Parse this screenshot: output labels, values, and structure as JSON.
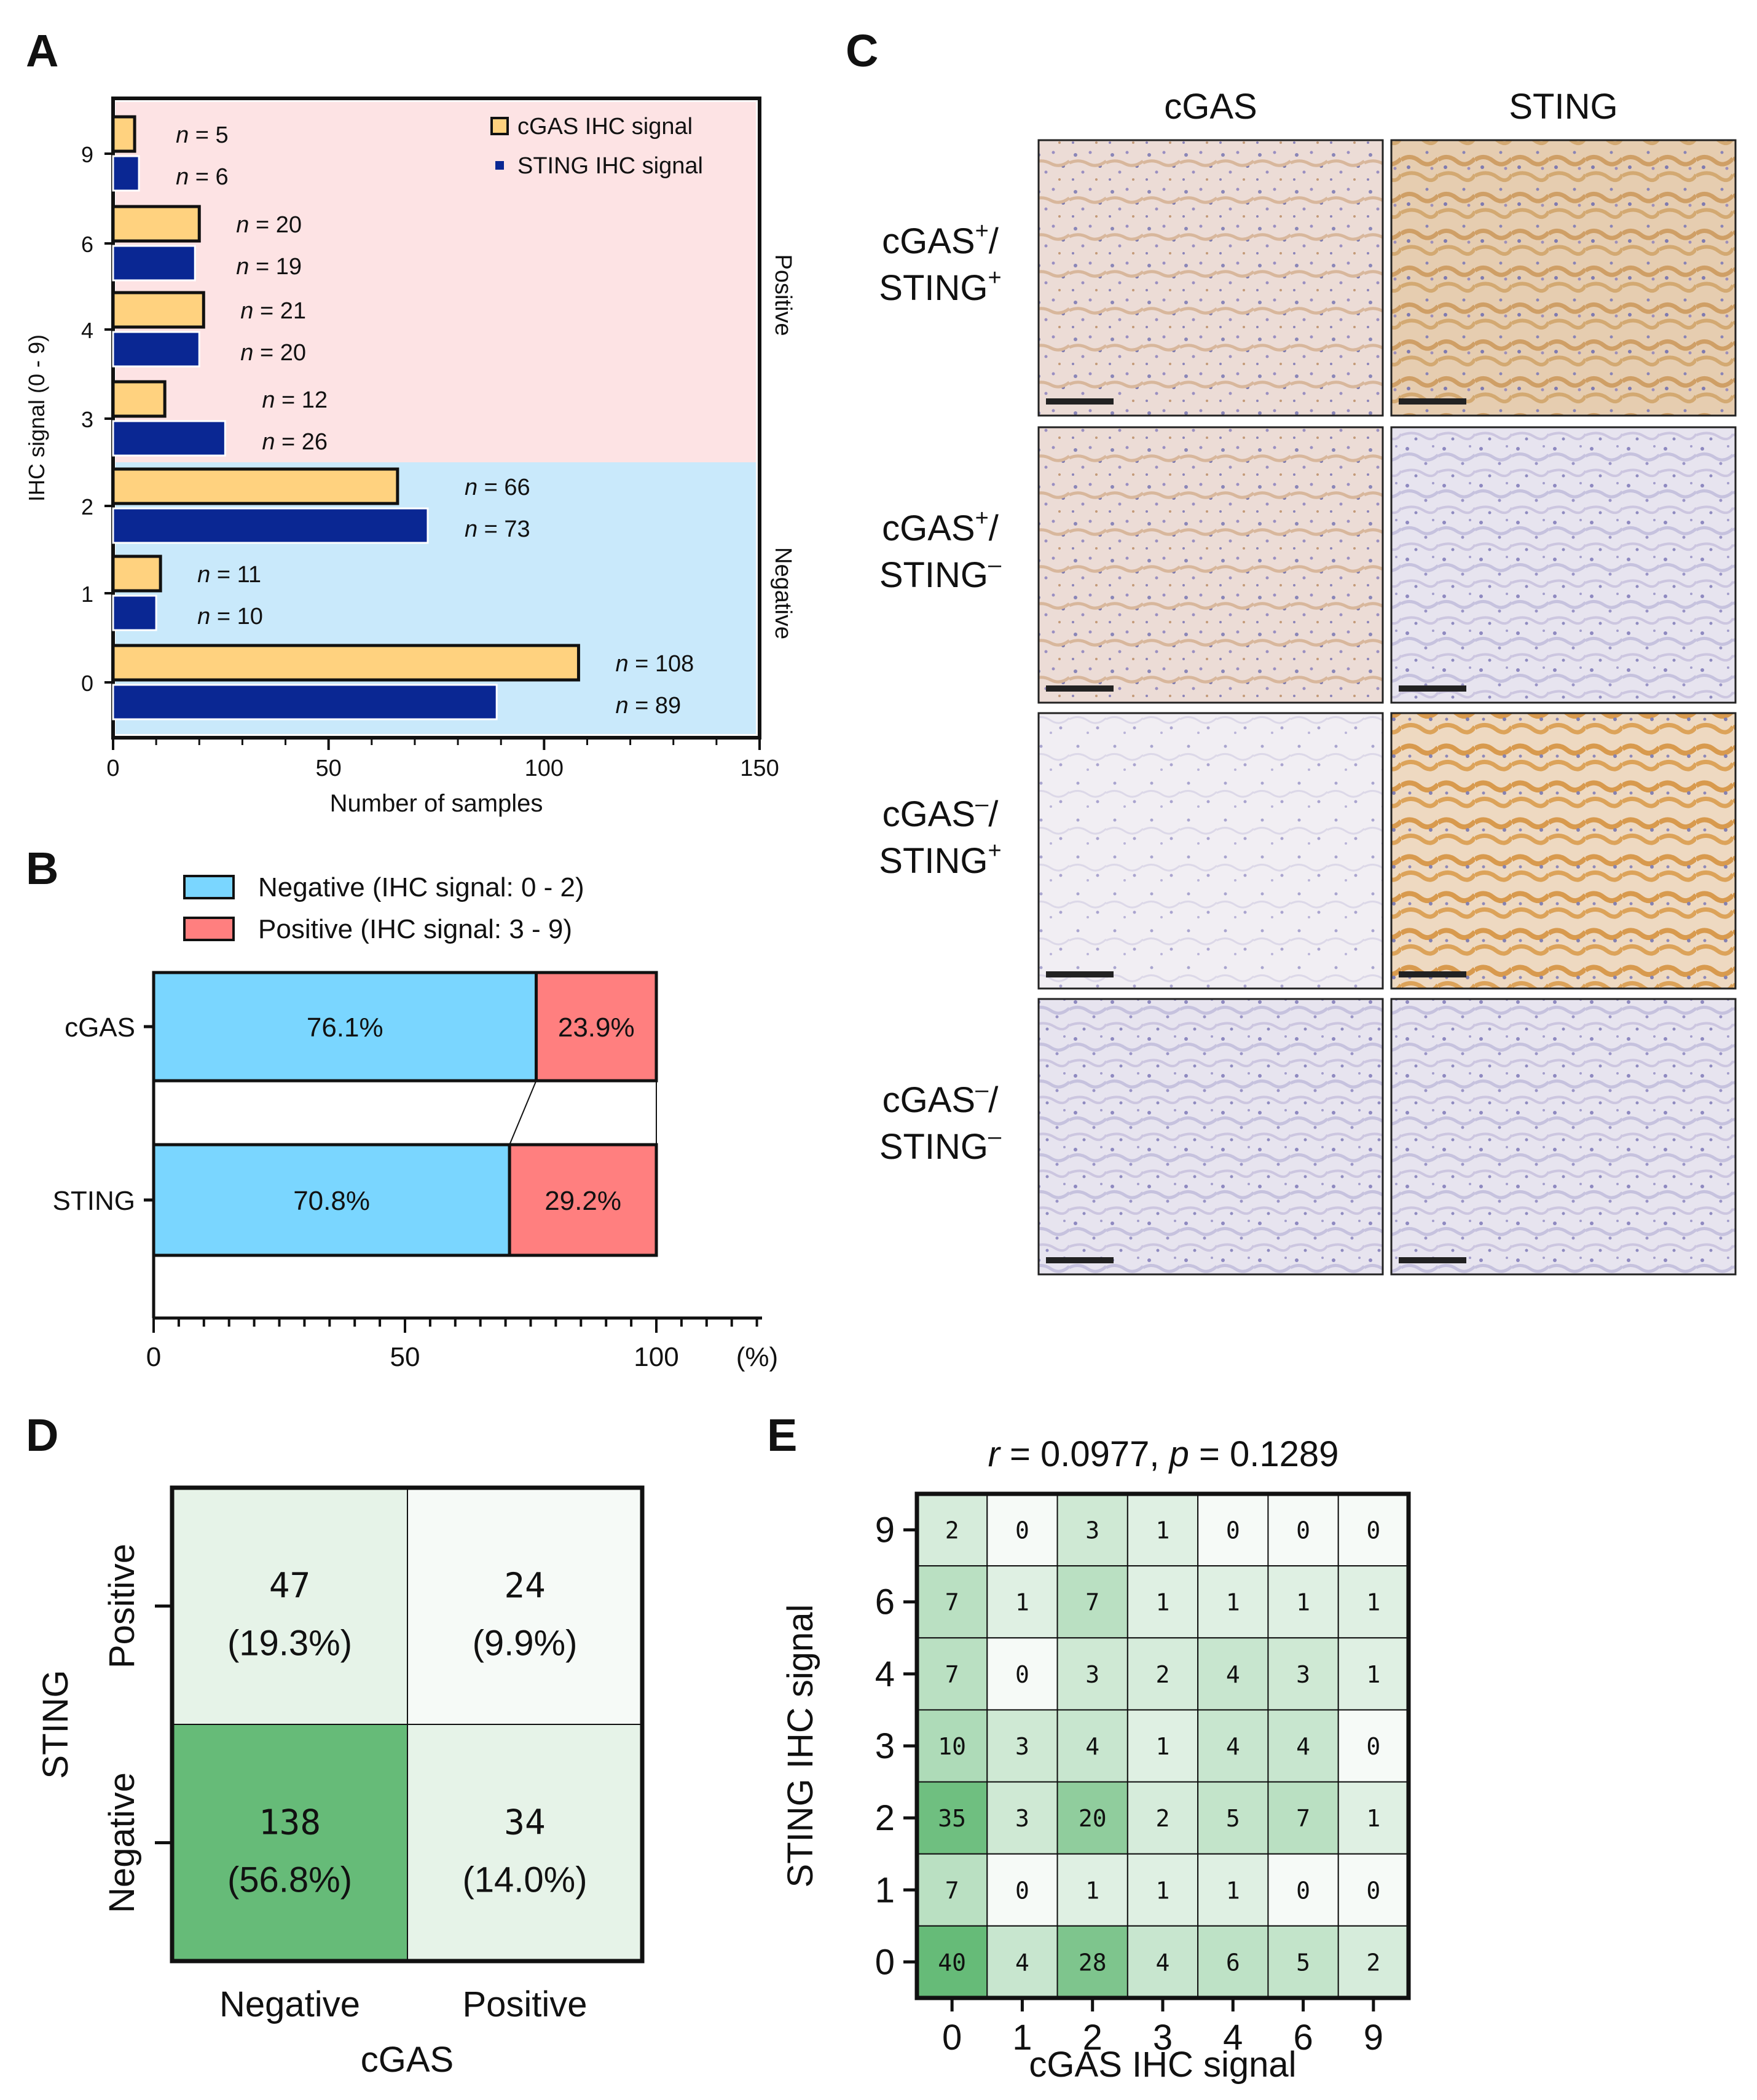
{
  "colors": {
    "cgas_bar": "#ffd27f",
    "sting_bar": "#0a2793",
    "positive_bg": "#fde3e4",
    "negative_bg": "#c9e9fb",
    "positive_label": "#f08080",
    "negative_label": "#1e90ff",
    "neg_bar": "#7ad6ff",
    "pos_bar": "#ff7f7f",
    "heat_high": "#66bb78",
    "heat_mid": "#b6dfbe",
    "heat_low": "#e6f3e8",
    "heat_none": "#f6faf7"
  },
  "panelA": {
    "letter": "A",
    "title": "",
    "xlabel": "Number of samples",
    "ylabel": "IHC signal (0 - 9)",
    "positive_label": "Positive",
    "negative_label": "Negative",
    "legend": [
      "cGAS IHC signal",
      "STING IHC signal"
    ]
  },
  "panelB": {
    "letter": "B",
    "legend": [
      "Negative (IHC signal: 0 - 2)",
      "Positive (IHC signal: 3 - 9)"
    ],
    "unit": "(%)"
  },
  "panelC": {
    "letter": "C",
    "col_headers": [
      "cGAS",
      "STING"
    ],
    "rows": [
      {
        "a": "cGAS",
        "a_sup": "+",
        "a_tail": "/",
        "b": "STING",
        "b_sup": "+",
        "img": [
          "IHC cGAS stain, cGAS+/STING+ case",
          "IHC STING stain, cGAS+/STING+ case"
        ]
      },
      {
        "a": "cGAS",
        "a_sup": "+",
        "a_tail": "/",
        "b": "STING",
        "b_sup": "–",
        "img": [
          "IHC cGAS stain, cGAS+/STING– case",
          "IHC STING stain, cGAS+/STING– case"
        ]
      },
      {
        "a": "cGAS",
        "a_sup": "–",
        "a_tail": "/",
        "b": "STING",
        "b_sup": "+",
        "img": [
          "IHC cGAS stain, cGAS–/STING+ case",
          "IHC STING stain, cGAS–/STING+ case"
        ]
      },
      {
        "a": "cGAS",
        "a_sup": "–",
        "a_tail": "/",
        "b": "STING",
        "b_sup": "–",
        "img": [
          "IHC cGAS stain, cGAS–/STING– case",
          "IHC STING stain, cGAS–/STING– case"
        ]
      }
    ]
  },
  "panelD": {
    "letter": "D",
    "xlabel": "cGAS",
    "ylabel": "STING",
    "x_ticks": [
      "Negative",
      "Positive"
    ],
    "y_ticks": [
      "Positive",
      "Negative"
    ],
    "cells": [
      {
        "count": "47",
        "pct": "(19.3%)"
      },
      {
        "count": "24",
        "pct": "(9.9%)"
      },
      {
        "count": "138",
        "pct": "(56.8%)"
      },
      {
        "count": "34",
        "pct": "(14.0%)"
      }
    ]
  },
  "panelE": {
    "letter": "E",
    "title_r": "r",
    "title_rval": " = 0.0977, ",
    "title_p": "p",
    "title_pval": " = 0.1289",
    "xlabel": "cGAS IHC signal",
    "ylabel": "STING IHC signal"
  },
  "chart_data": [
    {
      "type": "bar",
      "orientation": "horizontal",
      "title": "",
      "xlabel": "Number of samples",
      "ylabel": "IHC signal (0 - 9)",
      "categories": [
        "0",
        "1",
        "2",
        "3",
        "4",
        "6",
        "9"
      ],
      "xlim": [
        0,
        150
      ],
      "x_ticks": [
        "0",
        "50",
        "100",
        "150"
      ],
      "series": [
        {
          "name": "cGAS IHC signal",
          "values": [
            108,
            11,
            66,
            12,
            21,
            20,
            5
          ],
          "labels": [
            "n = 108",
            "n = 11",
            "n = 66",
            "n = 12",
            "n = 21",
            "n = 20",
            "n = 5"
          ]
        },
        {
          "name": "STING IHC signal",
          "values": [
            89,
            10,
            73,
            26,
            20,
            19,
            6
          ],
          "labels": [
            "n = 89",
            "n = 10",
            "n = 73",
            "n = 26",
            "n = 20",
            "n = 19",
            "n = 6"
          ]
        }
      ]
    },
    {
      "type": "bar",
      "orientation": "horizontal",
      "stacked": true,
      "categories": [
        "cGAS",
        "STING"
      ],
      "xlim": [
        0,
        100
      ],
      "x_ticks": [
        "0",
        "50",
        "100"
      ],
      "series": [
        {
          "name": "Negative (IHC signal: 0 - 2)",
          "values": [
            76.1,
            70.8
          ],
          "labels": [
            "76.1%",
            "70.8%"
          ]
        },
        {
          "name": "Positive (IHC signal: 3 - 9)",
          "values": [
            23.9,
            29.2
          ],
          "labels": [
            "23.9%",
            "29.2%"
          ]
        }
      ]
    },
    {
      "type": "heatmap",
      "xlabel": "cGAS IHC signal",
      "ylabel": "STING IHC signal",
      "x": [
        "0",
        "1",
        "2",
        "3",
        "4",
        "6",
        "9"
      ],
      "y": [
        "9",
        "6",
        "4",
        "3",
        "2",
        "1",
        "0"
      ],
      "values": [
        [
          2,
          0,
          3,
          1,
          0,
          0,
          0
        ],
        [
          7,
          1,
          7,
          1,
          1,
          1,
          1
        ],
        [
          7,
          0,
          3,
          2,
          4,
          3,
          1
        ],
        [
          10,
          3,
          4,
          1,
          4,
          4,
          0
        ],
        [
          35,
          3,
          20,
          2,
          5,
          7,
          1
        ],
        [
          7,
          0,
          1,
          1,
          1,
          0,
          0
        ],
        [
          40,
          4,
          28,
          4,
          6,
          5,
          2
        ]
      ]
    }
  ]
}
